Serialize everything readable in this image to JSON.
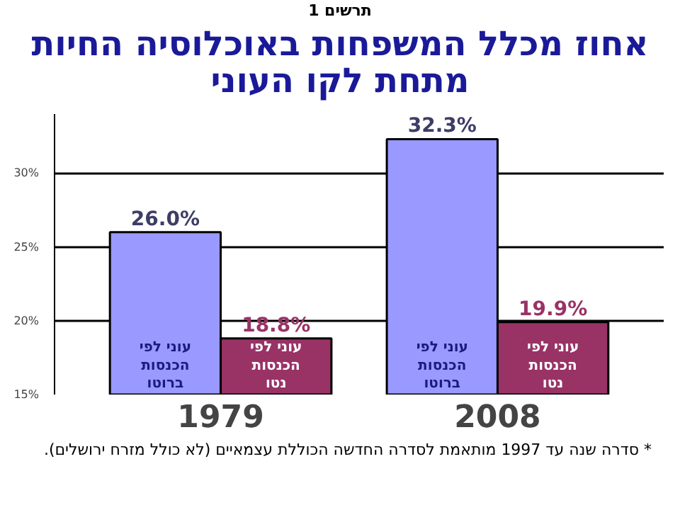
{
  "chart_data": {
    "type": "bar",
    "subtitle": "תרשים 1",
    "title": "אחוז מכלל המשפחות באוכלוסיה החיות מתחת לקו העוני",
    "categories": [
      "1979",
      "2008"
    ],
    "series": [
      {
        "name": "עוני לפי הכנסות ברוטו",
        "color": "#9999ff",
        "values": [
          26.0,
          32.3
        ],
        "value_labels": [
          "26.0%",
          "32.3%"
        ]
      },
      {
        "name": "עוני לפי הכנסות נטו",
        "color": "#993366",
        "values": [
          18.8,
          19.9
        ],
        "value_labels": [
          "18.8%",
          "19.9%"
        ]
      }
    ],
    "ylim": [
      15,
      34
    ],
    "yticks": [
      {
        "value": 15,
        "label": "15%"
      },
      {
        "value": 20,
        "label": "20%"
      },
      {
        "value": 25,
        "label": "25%"
      },
      {
        "value": 30,
        "label": "30%"
      }
    ],
    "grid": "y",
    "annotations": [
      "* סדרה שנה עד 1997 מותאמת לסדרה החדשה הכוללת עצמאיים (לא כולל מזרח ירושלים)."
    ]
  }
}
